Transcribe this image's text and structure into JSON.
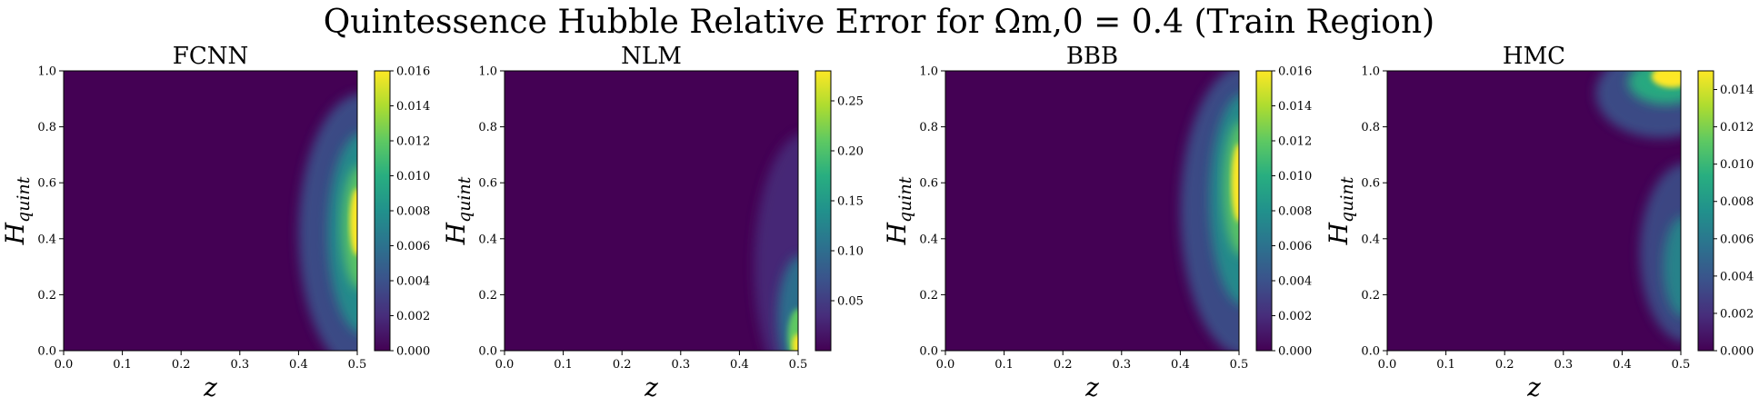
{
  "figure": {
    "title": "Quintessence Hubble Relative Error for Ωm,0 = 0.4 (Train Region)"
  },
  "chart_data": [
    {
      "type": "heatmap",
      "title": "FCNN",
      "xlabel": "z",
      "ylabel": "Hquint",
      "xlim": [
        0.0,
        0.5
      ],
      "ylim": [
        0.0,
        1.0
      ],
      "x_ticks": [
        "0.0",
        "0.1",
        "0.2",
        "0.3",
        "0.4",
        "0.5"
      ],
      "y_ticks": [
        "0.0",
        "0.2",
        "0.4",
        "0.6",
        "0.8",
        "1.0"
      ],
      "colorbar": {
        "range": [
          0.0,
          0.016
        ],
        "ticks": [
          "0.000",
          "0.002",
          "0.004",
          "0.006",
          "0.008",
          "0.010",
          "0.012",
          "0.014",
          "0.016"
        ]
      },
      "colormap": "viridis",
      "pattern": "error grows toward z = 0.5, peaking near Hquint = 0.4–0.6"
    },
    {
      "type": "heatmap",
      "title": "NLM",
      "xlabel": "z",
      "ylabel": "Hquint",
      "xlim": [
        0.0,
        0.5
      ],
      "ylim": [
        0.0,
        1.0
      ],
      "x_ticks": [
        "0.0",
        "0.1",
        "0.2",
        "0.3",
        "0.4",
        "0.5"
      ],
      "y_ticks": [
        "0.0",
        "0.2",
        "0.4",
        "0.6",
        "0.8",
        "1.0"
      ],
      "colorbar": {
        "range": [
          0.0,
          0.28
        ],
        "ticks": [
          "0.05",
          "0.10",
          "0.15",
          "0.20",
          "0.25"
        ]
      },
      "colormap": "viridis",
      "pattern": "error concentrated at z = 0.5, highest near Hquint = 0"
    },
    {
      "type": "heatmap",
      "title": "BBB",
      "xlabel": "z",
      "ylabel": "Hquint",
      "xlim": [
        0.0,
        0.5
      ],
      "ylim": [
        0.0,
        1.0
      ],
      "x_ticks": [
        "0.0",
        "0.1",
        "0.2",
        "0.3",
        "0.4",
        "0.5"
      ],
      "y_ticks": [
        "0.0",
        "0.2",
        "0.4",
        "0.6",
        "0.8",
        "1.0"
      ],
      "colorbar": {
        "range": [
          0.0,
          0.016
        ],
        "ticks": [
          "0.000",
          "0.002",
          "0.004",
          "0.006",
          "0.008",
          "0.010",
          "0.012",
          "0.014",
          "0.016"
        ]
      },
      "colormap": "viridis",
      "pattern": "error grows toward z = 0.5, peaking near Hquint = 0.45–0.65"
    },
    {
      "type": "heatmap",
      "title": "HMC",
      "xlabel": "z",
      "ylabel": "Hquint",
      "xlim": [
        0.0,
        0.5
      ],
      "ylim": [
        0.0,
        1.0
      ],
      "x_ticks": [
        "0.0",
        "0.1",
        "0.2",
        "0.3",
        "0.4",
        "0.5"
      ],
      "y_ticks": [
        "0.0",
        "0.2",
        "0.4",
        "0.6",
        "0.8",
        "1.0"
      ],
      "colorbar": {
        "range": [
          0.0,
          0.015
        ],
        "ticks": [
          "0.000",
          "0.002",
          "0.004",
          "0.006",
          "0.008",
          "0.010",
          "0.012",
          "0.014"
        ]
      },
      "colormap": "viridis",
      "pattern": "highest error at z = 0.5, Hquint = 1.0; secondary lobe near Hquint = 0.3"
    }
  ]
}
